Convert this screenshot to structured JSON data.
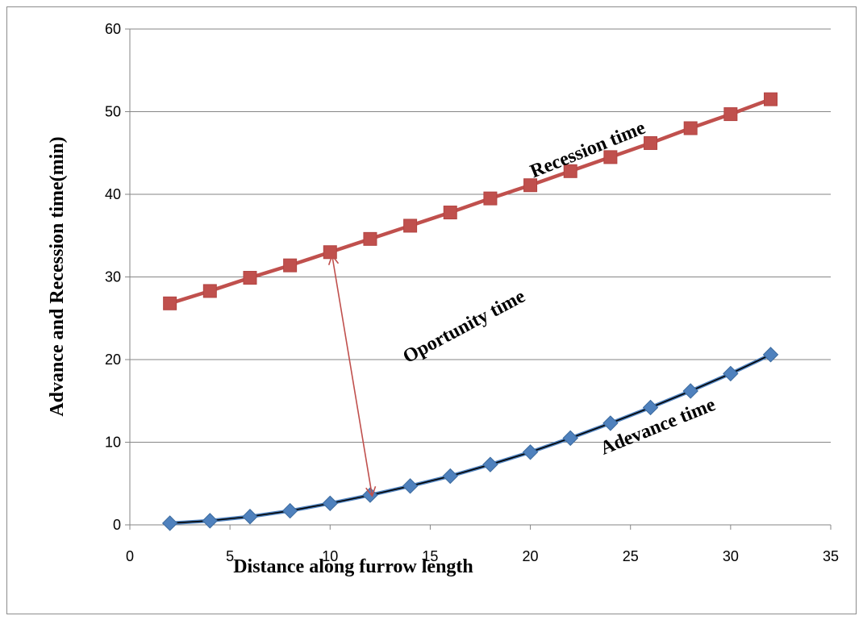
{
  "chart_data": {
    "type": "line",
    "title": "",
    "xlabel": "Distance along furrow length",
    "ylabel": "Advance and Recession time(min)",
    "xlim": [
      0,
      35
    ],
    "ylim": [
      0,
      60
    ],
    "x_ticks": [
      0,
      5,
      10,
      15,
      20,
      25,
      30,
      35
    ],
    "y_ticks": [
      0,
      10,
      20,
      30,
      40,
      50,
      60
    ],
    "grid": "horizontal",
    "legend": "none",
    "x": [
      2,
      4,
      6,
      8,
      10,
      12,
      14,
      16,
      18,
      20,
      22,
      24,
      26,
      28,
      30,
      32
    ],
    "series": [
      {
        "name": "Recession time",
        "color": "#c0504d",
        "marker": "square",
        "values": [
          26.8,
          28.3,
          29.9,
          31.4,
          33.0,
          34.6,
          36.2,
          37.8,
          39.5,
          41.1,
          42.8,
          44.5,
          46.2,
          48.0,
          49.7,
          51.5
        ]
      },
      {
        "name": "Adevance time",
        "color": "#4f81bd",
        "marker": "diamond",
        "values": [
          0.2,
          0.5,
          1.0,
          1.7,
          2.6,
          3.6,
          4.7,
          5.9,
          7.3,
          8.8,
          10.5,
          12.3,
          14.2,
          16.2,
          18.3,
          20.6
        ],
        "trendline": {
          "type": "polynomial",
          "color": "#000000"
        }
      }
    ],
    "annotations": [
      {
        "text": "Recession time",
        "x": 25.8,
        "y": 47.5,
        "rotation": -22
      },
      {
        "text": "Oportunity time",
        "x": 19.8,
        "y": 27.2,
        "rotation": -28
      },
      {
        "text": "Adevance time",
        "x": 29.3,
        "y": 14.0,
        "rotation": -22
      }
    ],
    "opportunity_arrow": {
      "from": [
        10.1,
        32.6
      ],
      "to": [
        12.1,
        3.5
      ],
      "color": "#c0504d"
    }
  }
}
